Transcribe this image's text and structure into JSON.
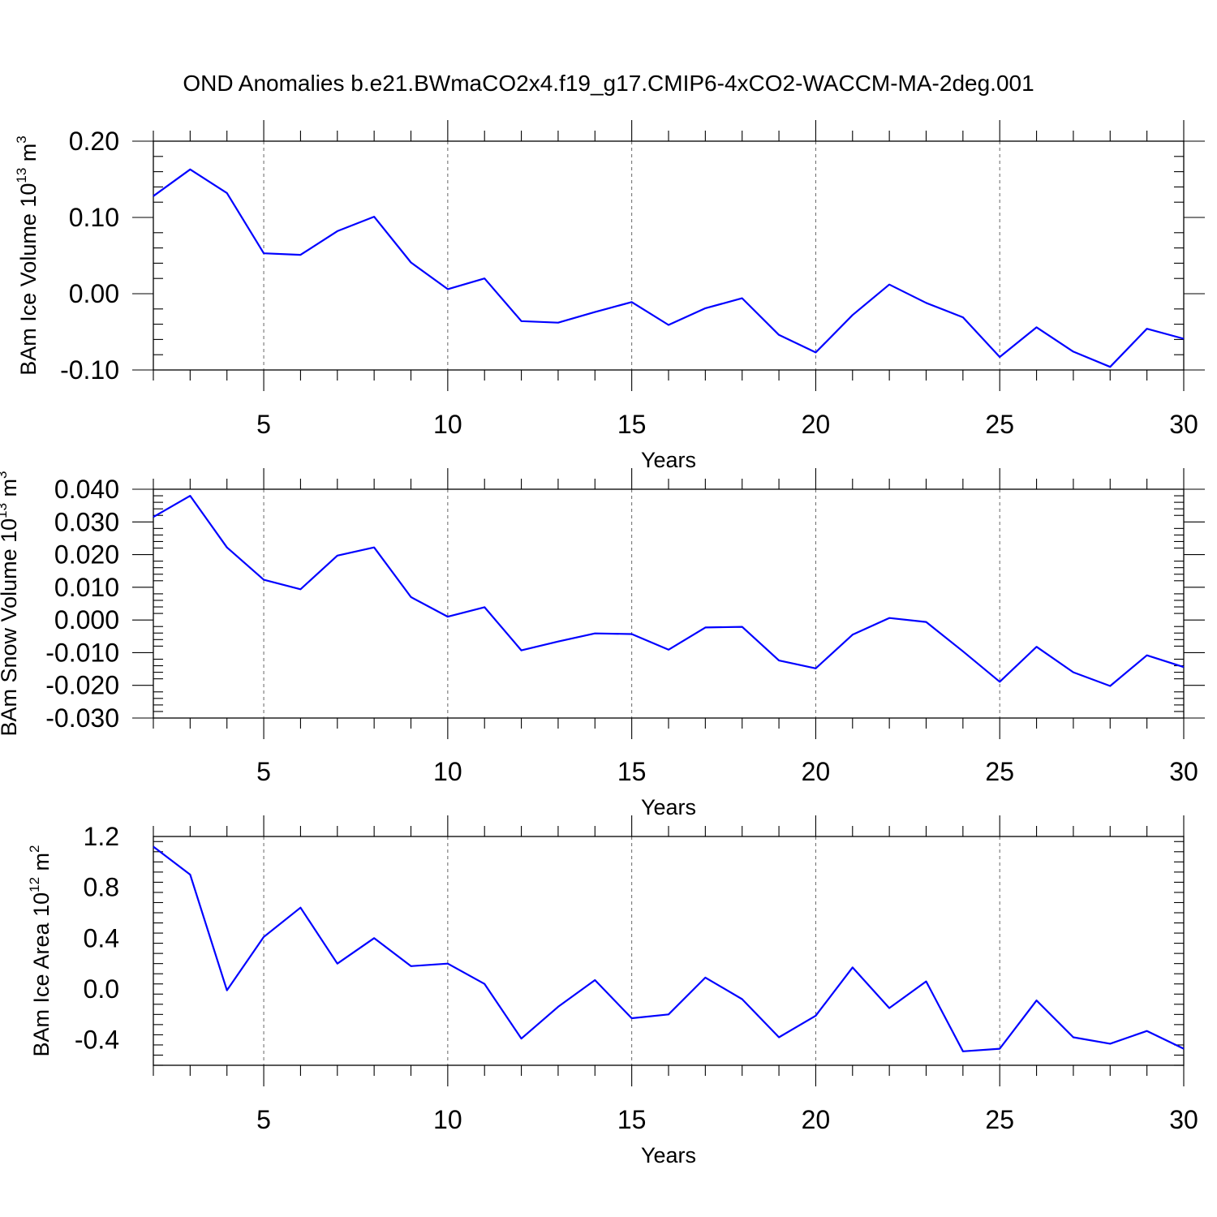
{
  "title": "OND Anomalies b.e21.BWmaCO2x4.f19_g17.CMIP6-4xCO2-WACCM-MA-2deg.001",
  "colors": {
    "line": "#0000ff",
    "frame": "#000000",
    "grid": "#666666"
  },
  "chart_data": [
    {
      "type": "line",
      "ylabel_main": "BAm Ice Volume 10",
      "ylabel_sup": "13",
      "ylabel_unit": " m",
      "ylabel_unit_sup": "3",
      "xlabel": "Years",
      "xlim": [
        2,
        30
      ],
      "ylim": [
        -0.1,
        0.2
      ],
      "x_ticks": [
        5,
        10,
        15,
        20,
        25,
        30
      ],
      "y_ticks": [
        -0.1,
        0.0,
        0.1,
        0.2
      ],
      "y_tick_labels": [
        "-0.10",
        "0.00",
        "0.10",
        "0.20"
      ],
      "x": [
        2,
        3,
        4,
        5,
        6,
        7,
        8,
        9,
        10,
        11,
        12,
        13,
        14,
        15,
        16,
        17,
        18,
        19,
        20,
        21,
        22,
        23,
        24,
        25,
        26,
        27,
        28,
        29,
        30
      ],
      "values": [
        0.128,
        0.163,
        0.132,
        0.053,
        0.051,
        0.082,
        0.101,
        0.041,
        0.006,
        0.02,
        -0.036,
        -0.038,
        -0.024,
        -0.011,
        -0.041,
        -0.019,
        -0.006,
        -0.054,
        -0.077,
        -0.028,
        0.012,
        -0.012,
        -0.031,
        -0.083,
        -0.044,
        -0.076,
        -0.096,
        -0.046,
        -0.059
      ]
    },
    {
      "type": "line",
      "ylabel_main": "BAm Snow Volume 10",
      "ylabel_sup": "13",
      "ylabel_unit": " m",
      "ylabel_unit_sup": "3",
      "xlabel": "Years",
      "xlim": [
        2,
        30
      ],
      "ylim": [
        -0.03,
        0.04
      ],
      "x_ticks": [
        5,
        10,
        15,
        20,
        25,
        30
      ],
      "y_ticks": [
        -0.03,
        -0.02,
        -0.01,
        0.0,
        0.01,
        0.02,
        0.03,
        0.04
      ],
      "y_tick_labels": [
        "-0.030",
        "-0.020",
        "-0.010",
        "0.000",
        "0.010",
        "0.020",
        "0.030",
        "0.040"
      ],
      "x": [
        2,
        3,
        4,
        5,
        6,
        7,
        8,
        9,
        10,
        11,
        12,
        13,
        14,
        15,
        16,
        17,
        18,
        19,
        20,
        21,
        22,
        23,
        24,
        25,
        26,
        27,
        28,
        29,
        30
      ],
      "values": [
        0.0315,
        0.038,
        0.0222,
        0.0123,
        0.0094,
        0.0197,
        0.0222,
        0.007,
        0.001,
        0.0039,
        -0.0093,
        -0.0066,
        -0.0041,
        -0.0043,
        -0.0091,
        -0.0023,
        -0.0021,
        -0.0124,
        -0.0148,
        -0.0045,
        0.0006,
        -0.0006,
        -0.0096,
        -0.0189,
        -0.0082,
        -0.016,
        -0.0202,
        -0.0108,
        -0.0144
      ]
    },
    {
      "type": "line",
      "ylabel_main": "BAm Ice Area 10",
      "ylabel_sup": "12",
      "ylabel_unit": " m",
      "ylabel_unit_sup": "2",
      "xlabel": "Years",
      "xlim": [
        2,
        30
      ],
      "ylim": [
        -0.6,
        1.2
      ],
      "x_ticks": [
        5,
        10,
        15,
        20,
        25,
        30
      ],
      "y_ticks": [
        -0.4,
        0.0,
        0.4,
        0.8,
        1.2
      ],
      "y_tick_labels": [
        "-0.4",
        "0.0",
        "0.4",
        "0.8",
        "1.2"
      ],
      "x": [
        2,
        3,
        4,
        5,
        6,
        7,
        8,
        9,
        10,
        11,
        12,
        13,
        14,
        15,
        16,
        17,
        18,
        19,
        20,
        21,
        22,
        23,
        24,
        25,
        26,
        27,
        28,
        29,
        30
      ],
      "values": [
        1.12,
        0.9,
        -0.01,
        0.41,
        0.64,
        0.2,
        0.4,
        0.18,
        0.2,
        0.04,
        -0.39,
        -0.14,
        0.07,
        -0.23,
        -0.2,
        0.09,
        -0.08,
        -0.38,
        -0.21,
        0.17,
        -0.15,
        0.06,
        -0.49,
        -0.47,
        -0.09,
        -0.38,
        -0.43,
        -0.33,
        -0.47
      ]
    }
  ]
}
